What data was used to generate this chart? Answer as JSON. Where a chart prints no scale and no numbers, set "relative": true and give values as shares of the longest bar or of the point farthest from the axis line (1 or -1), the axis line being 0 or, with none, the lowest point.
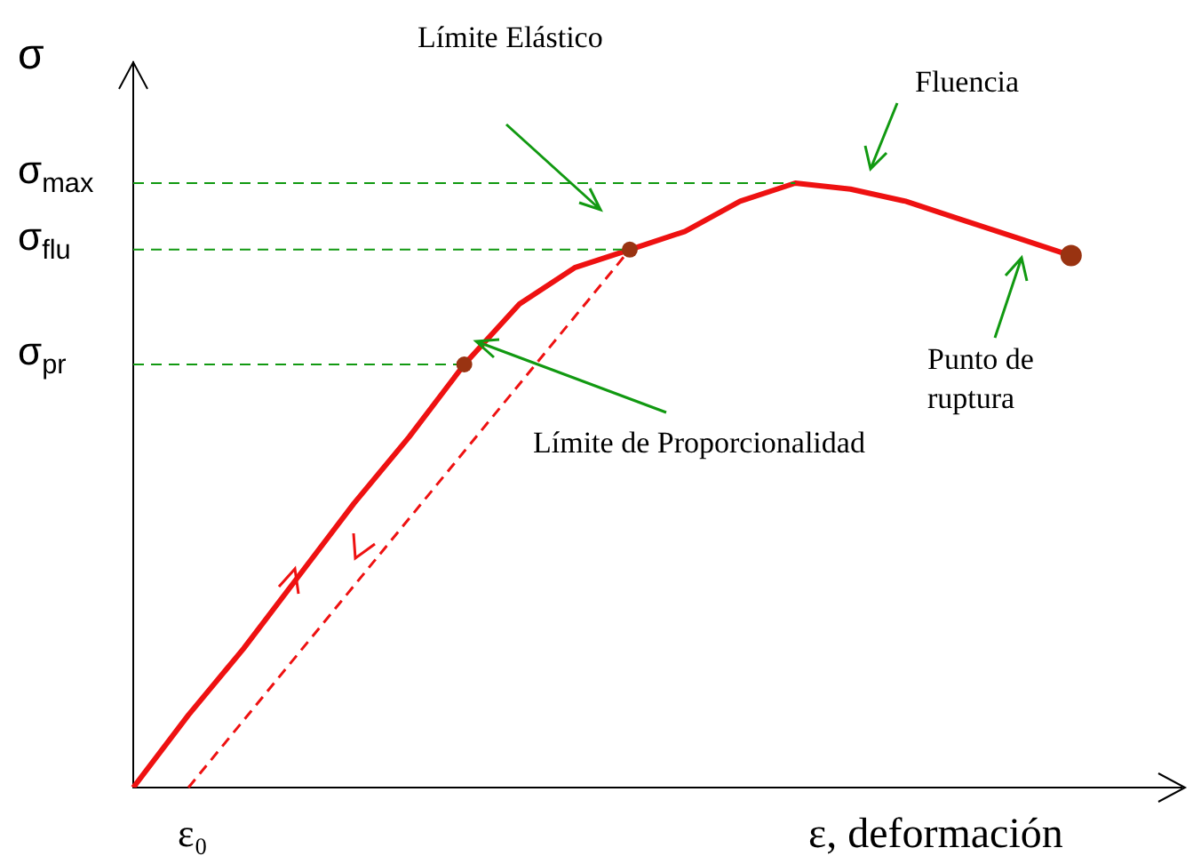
{
  "chart_data": {
    "type": "line",
    "relative": true,
    "xlabel": "ε, deformación",
    "ylabel": "σ",
    "legend": false,
    "grid": false,
    "categories": [
      null,
      null,
      null,
      null,
      null,
      null,
      null,
      null,
      null,
      null,
      null,
      null,
      null,
      null,
      null,
      null,
      null,
      null,
      null,
      null
    ],
    "series": [
      {
        "color": "#ee1111",
        "values": [
          0,
          0.12,
          0.23,
          0.35,
          0.47,
          0.58,
          0.7,
          0.8,
          0.86,
          0.89,
          0.92,
          0.97,
          1,
          0.99,
          0.97,
          0.94,
          0.91,
          0.88,
          null,
          null
        ]
      }
    ],
    "ref_lines": [
      {
        "axis": "y",
        "value": 1,
        "label": "σ$_{max}$",
        "color": "#119911",
        "line_style": "dashed"
      },
      {
        "axis": "y",
        "value": 0.89,
        "label": "σ$_{flu}$",
        "color": "#119911",
        "line_style": "dashed"
      },
      {
        "axis": "y",
        "value": 0.7,
        "label": "σ$_{pr}$",
        "color": "#119911",
        "line_style": "dashed"
      }
    ],
    "annotations": [
      "Límite Elástico",
      "Fluencia",
      "Punto de ruptura",
      "Límite de Proporcionalidad",
      "ε₀"
    ]
  }
}
